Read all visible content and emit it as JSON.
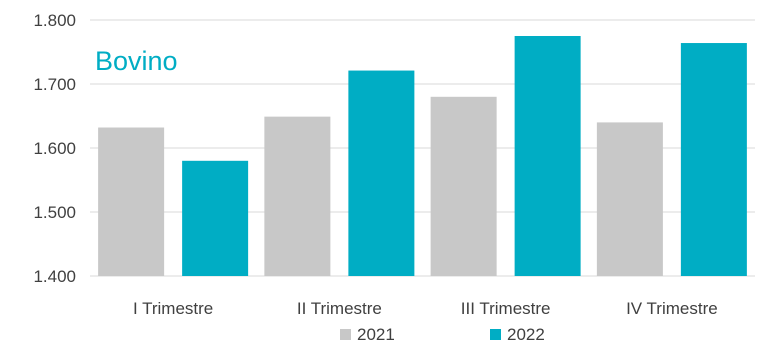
{
  "chart_data": {
    "type": "bar",
    "title": "Bovino",
    "categories": [
      "I Trimestre",
      "II Trimestre",
      "III Trimestre",
      "IV Trimestre"
    ],
    "series": [
      {
        "name": "2021",
        "color": "#c8c8c8",
        "values": [
          1632,
          1649,
          1680,
          1640
        ]
      },
      {
        "name": "2022",
        "color": "#00adc4",
        "values": [
          1580,
          1721,
          1775,
          1764
        ]
      }
    ],
    "ylim": [
      1400,
      1800
    ],
    "yticks": [
      "1.400",
      "1.500",
      "1.600",
      "1.700",
      "1.800"
    ],
    "ytick_values": [
      1400,
      1500,
      1600,
      1700,
      1800
    ],
    "grid": true,
    "legend": "bottom",
    "title_color": "#00adc4"
  }
}
